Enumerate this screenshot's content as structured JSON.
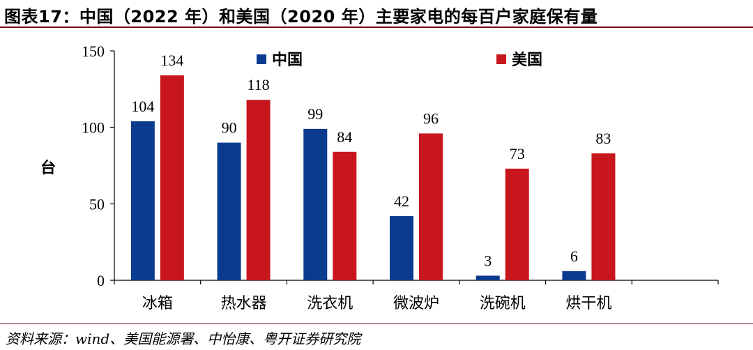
{
  "header": {
    "title": "图表17：中国（2022 年）和美国（2020 年）主要家电的每百户家庭保有量"
  },
  "footer": {
    "source": "资料来源：wind、美国能源署、中怡康、粤开证券研究院"
  },
  "chart_data": {
    "type": "bar",
    "title": "",
    "xlabel": "",
    "ylabel": "台",
    "ylim": [
      0,
      150
    ],
    "yticks": [
      0,
      50,
      100,
      150
    ],
    "categories": [
      "冰箱",
      "热水器",
      "洗衣机",
      "微波炉",
      "洗碗机",
      "烘干机",
      ""
    ],
    "series": [
      {
        "name": "中国",
        "color": "#0b3b8f",
        "values": [
          104,
          90,
          99,
          42,
          3,
          6,
          null
        ]
      },
      {
        "name": "美国",
        "color": "#c8161d",
        "values": [
          134,
          118,
          84,
          96,
          73,
          83,
          null
        ]
      }
    ],
    "legend_position": "top",
    "grid": false
  }
}
